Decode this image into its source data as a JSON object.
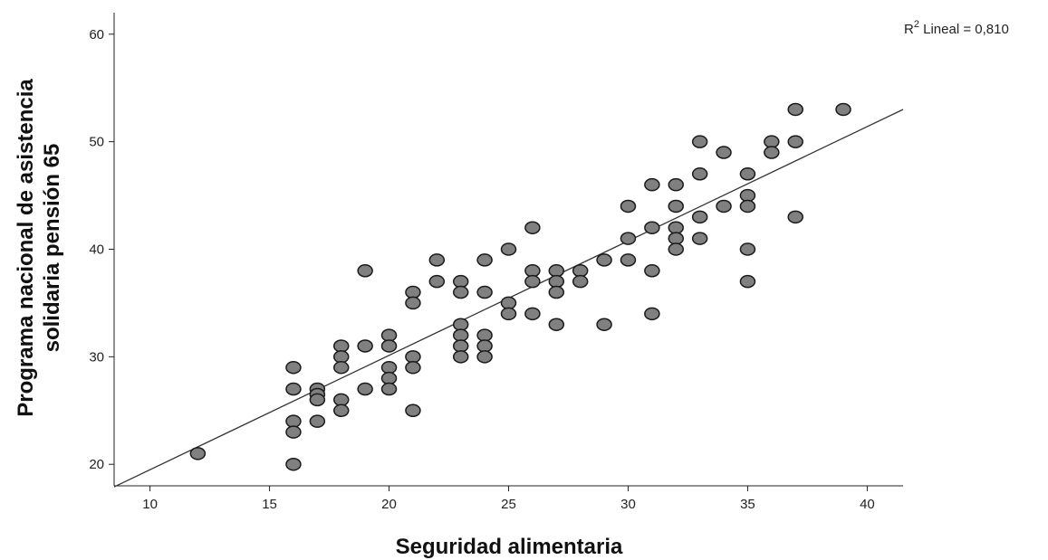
{
  "chart_data": {
    "type": "scatter",
    "title": "",
    "xlabel": "Seguridad alimentaria",
    "ylabel_lines": [
      "Programa nacional de asistencia",
      "solidaria pensión 65"
    ],
    "xlim": [
      8.5,
      41.5
    ],
    "ylim": [
      18,
      62
    ],
    "x_ticks": [
      10,
      15,
      20,
      25,
      30,
      35,
      40
    ],
    "y_ticks": [
      20,
      30,
      40,
      50,
      60
    ],
    "grid": false,
    "legend": "none",
    "fit_line": {
      "type": "linear",
      "from": [
        8.5,
        17.9
      ],
      "to": [
        41.5,
        53.0
      ],
      "r2_prefix": "R",
      "r2_sup": "2",
      "r2_suffix": " Lineal = 0,810"
    },
    "marker_fill": "#808080",
    "marker_stroke": "#1a1a1a",
    "line_color": "#333333",
    "points": [
      {
        "x": 12,
        "y": 21
      },
      {
        "x": 16,
        "y": 29
      },
      {
        "x": 16,
        "y": 27
      },
      {
        "x": 16,
        "y": 24
      },
      {
        "x": 16,
        "y": 23
      },
      {
        "x": 16,
        "y": 20
      },
      {
        "x": 17,
        "y": 27
      },
      {
        "x": 17,
        "y": 26.5
      },
      {
        "x": 17,
        "y": 26
      },
      {
        "x": 17,
        "y": 24
      },
      {
        "x": 18,
        "y": 31
      },
      {
        "x": 18,
        "y": 30
      },
      {
        "x": 18,
        "y": 29
      },
      {
        "x": 18,
        "y": 26
      },
      {
        "x": 18,
        "y": 25
      },
      {
        "x": 19,
        "y": 38
      },
      {
        "x": 19,
        "y": 31
      },
      {
        "x": 19,
        "y": 27
      },
      {
        "x": 20,
        "y": 32
      },
      {
        "x": 20,
        "y": 31
      },
      {
        "x": 20,
        "y": 29
      },
      {
        "x": 20,
        "y": 28
      },
      {
        "x": 20,
        "y": 27
      },
      {
        "x": 21,
        "y": 36
      },
      {
        "x": 21,
        "y": 35
      },
      {
        "x": 21,
        "y": 30
      },
      {
        "x": 21,
        "y": 29
      },
      {
        "x": 21,
        "y": 25
      },
      {
        "x": 22,
        "y": 39
      },
      {
        "x": 22,
        "y": 37
      },
      {
        "x": 23,
        "y": 37
      },
      {
        "x": 23,
        "y": 36
      },
      {
        "x": 23,
        "y": 33
      },
      {
        "x": 23,
        "y": 32
      },
      {
        "x": 23,
        "y": 31
      },
      {
        "x": 23,
        "y": 30
      },
      {
        "x": 24,
        "y": 39
      },
      {
        "x": 24,
        "y": 36
      },
      {
        "x": 24,
        "y": 32
      },
      {
        "x": 24,
        "y": 31
      },
      {
        "x": 24,
        "y": 30
      },
      {
        "x": 25,
        "y": 40
      },
      {
        "x": 25,
        "y": 35
      },
      {
        "x": 25,
        "y": 34
      },
      {
        "x": 26,
        "y": 42
      },
      {
        "x": 26,
        "y": 38
      },
      {
        "x": 26,
        "y": 37
      },
      {
        "x": 26,
        "y": 34
      },
      {
        "x": 27,
        "y": 38
      },
      {
        "x": 27,
        "y": 37
      },
      {
        "x": 27,
        "y": 36
      },
      {
        "x": 27,
        "y": 33
      },
      {
        "x": 28,
        "y": 38
      },
      {
        "x": 28,
        "y": 37
      },
      {
        "x": 29,
        "y": 39
      },
      {
        "x": 29,
        "y": 33
      },
      {
        "x": 30,
        "y": 44
      },
      {
        "x": 30,
        "y": 41
      },
      {
        "x": 30,
        "y": 39
      },
      {
        "x": 31,
        "y": 46
      },
      {
        "x": 31,
        "y": 42
      },
      {
        "x": 31,
        "y": 38
      },
      {
        "x": 31,
        "y": 34
      },
      {
        "x": 32,
        "y": 46
      },
      {
        "x": 32,
        "y": 44
      },
      {
        "x": 32,
        "y": 42
      },
      {
        "x": 32,
        "y": 41
      },
      {
        "x": 32,
        "y": 40
      },
      {
        "x": 33,
        "y": 50
      },
      {
        "x": 33,
        "y": 47
      },
      {
        "x": 33,
        "y": 43
      },
      {
        "x": 33,
        "y": 41
      },
      {
        "x": 34,
        "y": 49
      },
      {
        "x": 34,
        "y": 44
      },
      {
        "x": 35,
        "y": 47
      },
      {
        "x": 35,
        "y": 45
      },
      {
        "x": 35,
        "y": 44
      },
      {
        "x": 35,
        "y": 40
      },
      {
        "x": 35,
        "y": 37
      },
      {
        "x": 36,
        "y": 50
      },
      {
        "x": 36,
        "y": 49
      },
      {
        "x": 37,
        "y": 53
      },
      {
        "x": 37,
        "y": 50
      },
      {
        "x": 37,
        "y": 43
      },
      {
        "x": 39,
        "y": 53
      }
    ]
  }
}
